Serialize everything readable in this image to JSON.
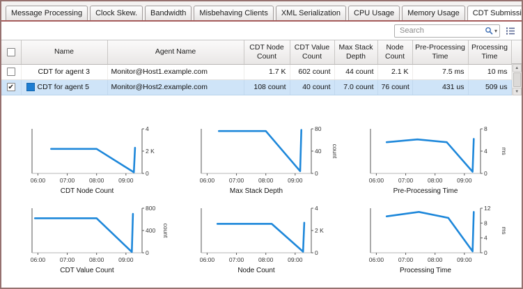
{
  "tabs": [
    {
      "label": "Message Processing",
      "active": false
    },
    {
      "label": "Clock Skew.",
      "active": false
    },
    {
      "label": "Bandwidth",
      "active": false
    },
    {
      "label": "Misbehaving Clients",
      "active": false
    },
    {
      "label": "XML Serialization",
      "active": false
    },
    {
      "label": "CPU Usage",
      "active": false
    },
    {
      "label": "Memory Usage",
      "active": false
    },
    {
      "label": "CDT Submission",
      "active": true
    }
  ],
  "search": {
    "placeholder": "Search"
  },
  "icons": {
    "checkmark": "✔",
    "scroll_up": "▲",
    "scroll_down": "▼",
    "search_caret": "▾"
  },
  "colors": {
    "chart_line": "#1d87da",
    "series_chip": "#1d7dd2",
    "selected_row": "#cfe4f8",
    "tab_underline": "#a55b5b"
  },
  "table": {
    "columns": [
      "Name",
      "Agent Name",
      "CDT Node Count",
      "CDT Value Count",
      "Max Stack Depth",
      "Node Count",
      "Pre-Processing Time",
      "Processing Time"
    ],
    "rows": [
      {
        "selected": false,
        "checked": false,
        "has_chip": false,
        "name": "CDT for agent 3",
        "agent": "Monitor@Host1.example.com",
        "values": [
          "1.7 K",
          "602 count",
          "44 count",
          "2.1 K",
          "7.5 ms",
          "10 ms"
        ]
      },
      {
        "selected": true,
        "checked": true,
        "has_chip": true,
        "name": "CDT for agent 5",
        "agent": "Monitor@Host2.example.com",
        "values": [
          "108 count",
          "40 count",
          "7.0 count",
          "76 count",
          "431 us",
          "509 us"
        ]
      }
    ]
  },
  "chart_data": [
    {
      "type": "line",
      "title": "CDT Node Count",
      "unit": "",
      "ylim": [
        0,
        4
      ],
      "yticks": [
        [
          0,
          "0"
        ],
        [
          2,
          "2 K"
        ],
        [
          4,
          "4"
        ]
      ],
      "xlim": [
        5.8,
        9.55
      ],
      "xticks": [
        [
          6,
          "06:00"
        ],
        [
          7,
          "07:00"
        ],
        [
          8,
          "08:00"
        ],
        [
          9,
          "09:00"
        ]
      ],
      "points": [
        [
          6.45,
          2.2
        ],
        [
          8.0,
          2.2
        ],
        [
          9.27,
          0.1
        ],
        [
          9.31,
          2.3
        ]
      ]
    },
    {
      "type": "line",
      "title": "Max Stack Depth",
      "unit": "count",
      "ylim": [
        0,
        80
      ],
      "yticks": [
        [
          0,
          "0"
        ],
        [
          40,
          "40"
        ],
        [
          80,
          "80"
        ]
      ],
      "xlim": [
        5.8,
        9.55
      ],
      "xticks": [
        [
          6,
          "06:00"
        ],
        [
          7,
          "07:00"
        ],
        [
          8,
          "08:00"
        ],
        [
          9,
          "09:00"
        ]
      ],
      "points": [
        [
          6.4,
          76
        ],
        [
          8.0,
          76
        ],
        [
          9.17,
          4
        ],
        [
          9.21,
          78
        ]
      ]
    },
    {
      "type": "line",
      "title": "Pre-Processing Time",
      "unit": "ms",
      "ylim": [
        0,
        8
      ],
      "yticks": [
        [
          0,
          "0"
        ],
        [
          4,
          "4"
        ],
        [
          8,
          "8"
        ]
      ],
      "xlim": [
        5.8,
        9.55
      ],
      "xticks": [
        [
          6,
          "06:00"
        ],
        [
          7,
          "07:00"
        ],
        [
          8,
          "08:00"
        ],
        [
          9,
          "09:00"
        ]
      ],
      "points": [
        [
          6.35,
          5.6
        ],
        [
          7.4,
          6.1
        ],
        [
          8.4,
          5.6
        ],
        [
          9.28,
          0.3
        ],
        [
          9.32,
          6.2
        ]
      ]
    },
    {
      "type": "line",
      "title": "CDT Value Count",
      "unit": "count",
      "ylim": [
        0,
        800
      ],
      "yticks": [
        [
          0,
          "0"
        ],
        [
          400,
          "400"
        ],
        [
          800,
          "800"
        ]
      ],
      "xlim": [
        5.8,
        9.55
      ],
      "xticks": [
        [
          6,
          "06:00"
        ],
        [
          7,
          "07:00"
        ],
        [
          8,
          "08:00"
        ],
        [
          9,
          "09:00"
        ]
      ],
      "points": [
        [
          5.9,
          620
        ],
        [
          8.0,
          620
        ],
        [
          9.2,
          15
        ],
        [
          9.24,
          700
        ]
      ]
    },
    {
      "type": "line",
      "title": "Node Count",
      "unit": "",
      "ylim": [
        0,
        4
      ],
      "yticks": [
        [
          0,
          "0"
        ],
        [
          2,
          "2 K"
        ],
        [
          4,
          "4"
        ]
      ],
      "xlim": [
        5.8,
        9.55
      ],
      "xticks": [
        [
          6,
          "06:00"
        ],
        [
          7,
          "07:00"
        ],
        [
          8,
          "08:00"
        ],
        [
          9,
          "09:00"
        ]
      ],
      "points": [
        [
          6.35,
          2.6
        ],
        [
          8.2,
          2.6
        ],
        [
          9.27,
          0.1
        ],
        [
          9.31,
          2.7
        ]
      ]
    },
    {
      "type": "line",
      "title": "Processing Time",
      "unit": "ms",
      "ylim": [
        0,
        12
      ],
      "yticks": [
        [
          0,
          "0"
        ],
        [
          4,
          "4"
        ],
        [
          8,
          "8"
        ],
        [
          12,
          "12"
        ]
      ],
      "xlim": [
        5.8,
        9.55
      ],
      "xticks": [
        [
          6,
          "06:00"
        ],
        [
          7,
          "07:00"
        ],
        [
          8,
          "08:00"
        ],
        [
          9,
          "09:00"
        ]
      ],
      "points": [
        [
          6.35,
          9.8
        ],
        [
          7.45,
          11
        ],
        [
          8.45,
          9.4
        ],
        [
          9.28,
          0.4
        ],
        [
          9.32,
          11
        ]
      ]
    }
  ]
}
